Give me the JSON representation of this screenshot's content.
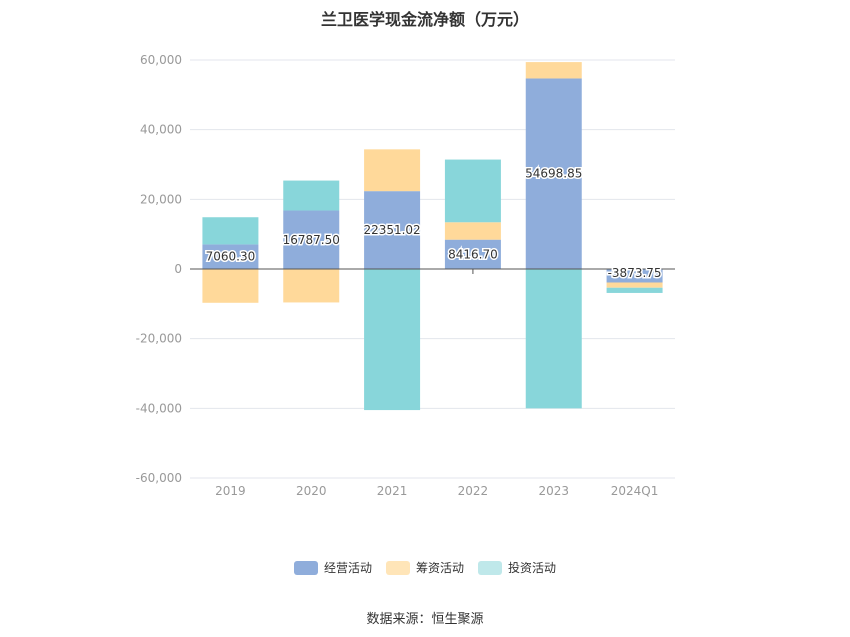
{
  "title": "兰卫医学现金流净额（万元）",
  "source": "数据来源：恒生聚源",
  "chart_data": {
    "type": "bar",
    "stacked": true,
    "categories": [
      "2019",
      "2020",
      "2021",
      "2022",
      "2023",
      "2024Q1"
    ],
    "ylim": [
      -60000,
      60000
    ],
    "yticks": [
      -60000,
      -40000,
      -20000,
      0,
      20000,
      40000,
      60000
    ],
    "ytick_labels": [
      "-60,000",
      "-40,000",
      "-20,000",
      "0",
      "20,000",
      "40,000",
      "60,000"
    ],
    "grid": true,
    "legend_position": "bottom",
    "series": [
      {
        "name": "经营活动",
        "color": "#8FADDB",
        "values": [
          7060.3,
          16787.5,
          22351.02,
          8416.7,
          54698.85,
          -3873.75
        ],
        "labels": [
          "7060.30",
          "16787.50",
          "22351.02",
          "8416.70",
          "54698.85",
          "-3873.75"
        ]
      },
      {
        "name": "筹资活动",
        "color": "#FFD99A",
        "values": [
          -9700,
          -9600,
          12000,
          5000,
          4700,
          -1500
        ]
      },
      {
        "name": "投资活动",
        "color": "#88D6DA",
        "values": [
          7800,
          8600,
          -40500,
          18000,
          -40000,
          -1500
        ]
      }
    ]
  }
}
